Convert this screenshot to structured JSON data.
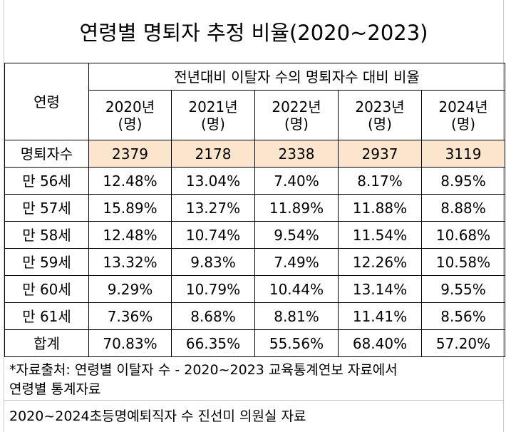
{
  "title": "연령별 명퇴자 추정 비율(2020~2023)",
  "table": {
    "age_header": "연령",
    "group_header": "전년대비 이탈자 수의 명퇴자수 대비 비율",
    "years": [
      {
        "year": "2020년",
        "unit": "(명)"
      },
      {
        "year": "2021년",
        "unit": "(명)"
      },
      {
        "year": "2022년",
        "unit": "(명)"
      },
      {
        "year": "2023년",
        "unit": "(명)"
      },
      {
        "year": "2024년",
        "unit": "(명)"
      }
    ],
    "retiree_row": {
      "label": "명퇴자수",
      "values": [
        "2379",
        "2178",
        "2338",
        "2937",
        "3119"
      ],
      "highlight_color": "#fce5cd"
    },
    "rows": [
      {
        "label": "만 56세",
        "values": [
          "12.48%",
          "13.04%",
          "7.40%",
          "8.17%",
          "8.95%"
        ]
      },
      {
        "label": "만 57세",
        "values": [
          "15.89%",
          "13.27%",
          "11.89%",
          "11.88%",
          "8.88%"
        ]
      },
      {
        "label": "만 58세",
        "values": [
          "12.48%",
          "10.74%",
          "9.54%",
          "11.54%",
          "10.68%"
        ]
      },
      {
        "label": "만 59세",
        "values": [
          "13.32%",
          "9.83%",
          "7.49%",
          "12.26%",
          "10.58%"
        ]
      },
      {
        "label": "만 60세",
        "values": [
          "9.29%",
          "10.79%",
          "10.44%",
          "13.14%",
          "9.55%"
        ]
      },
      {
        "label": "만 61세",
        "values": [
          "7.36%",
          "8.68%",
          "8.81%",
          "11.41%",
          "8.56%"
        ]
      }
    ],
    "total_row": {
      "label": "합계",
      "values": [
        "70.83%",
        "66.35%",
        "55.56%",
        "68.40%",
        "57.20%"
      ]
    }
  },
  "source": {
    "line1": "*자료출처: 연령별 이탈자 수 - 2020~2023 교육통계연보 자료에서",
    "line2": "연령별 통계자료",
    "line3": "2020~2024초등명예퇴직자 수 진선미 의원실 자료"
  }
}
